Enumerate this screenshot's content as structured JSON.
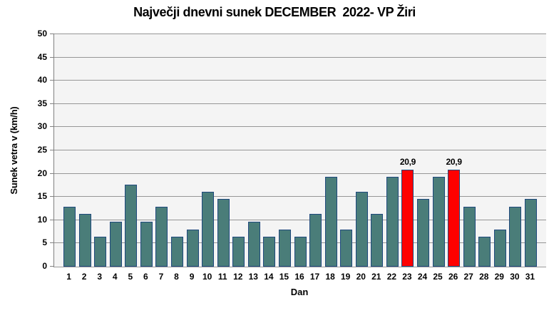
{
  "chart_data": {
    "type": "bar",
    "title": "Največji dnevni sunek DECEMBER  2022- VP Žiri",
    "xlabel": "Dan",
    "ylabel": "Sunek vetra v (km/h)",
    "categories": [
      "1",
      "2",
      "3",
      "4",
      "5",
      "6",
      "7",
      "8",
      "9",
      "10",
      "11",
      "12",
      "13",
      "14",
      "15",
      "16",
      "17",
      "18",
      "19",
      "20",
      "21",
      "22",
      "23",
      "24",
      "25",
      "26",
      "27",
      "28",
      "29",
      "30",
      "31"
    ],
    "values": [
      12.9,
      11.3,
      6.4,
      9.7,
      17.7,
      9.7,
      12.9,
      6.4,
      8.0,
      16.1,
      14.5,
      6.4,
      9.7,
      6.4,
      8.0,
      6.4,
      11.3,
      19.3,
      8.0,
      16.1,
      11.3,
      19.3,
      20.9,
      14.5,
      19.3,
      20.9,
      12.9,
      6.4,
      8.0,
      12.9,
      14.5
    ],
    "ylim": [
      0,
      50
    ],
    "ytick_step": 5,
    "grid": true,
    "legend_position": "none",
    "highlighted_categories": [
      "23",
      "26"
    ],
    "data_labels": {
      "23": "20,9",
      "26": "20,9"
    },
    "colors": {
      "bar_fill": "#4a7d79",
      "bar_border": "#1f497d",
      "highlight_fill": "#fe0000",
      "plot_background": "#f4f4f4",
      "gridline": "#969696",
      "axis_line": "#808080",
      "text": "#000000"
    }
  }
}
